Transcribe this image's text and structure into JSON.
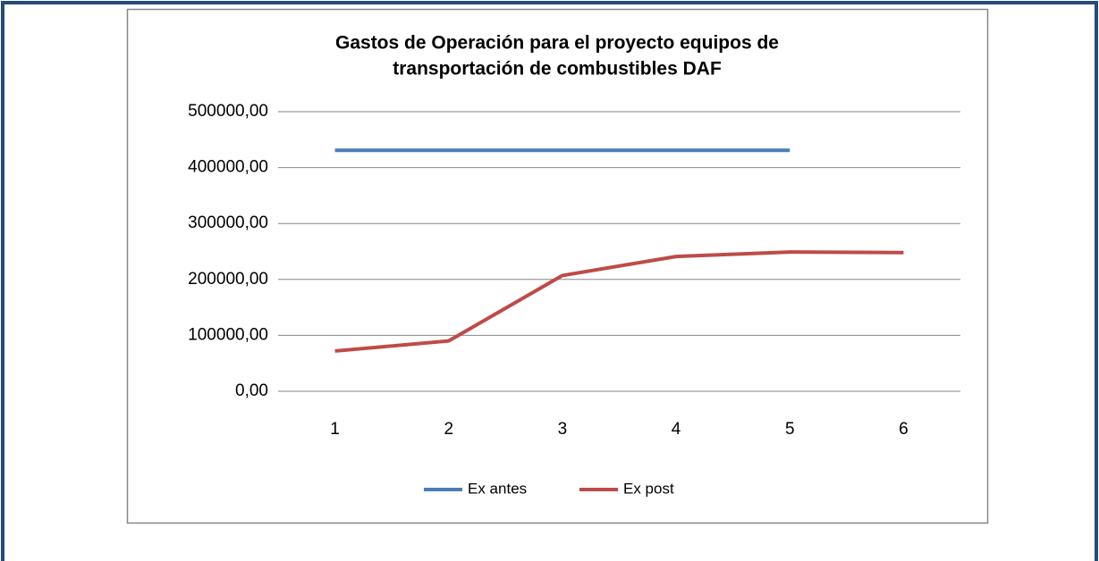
{
  "chart_data": {
    "type": "line",
    "title": [
      "Gastos de Operación para el proyecto equipos de",
      "transportación de combustibles DAF"
    ],
    "categories": [
      "1",
      "2",
      "3",
      "4",
      "5",
      "6"
    ],
    "series": [
      {
        "name": "Ex antes",
        "color": "#4a7ebb",
        "values": [
          431000,
          431000,
          431000,
          431000,
          431000,
          null
        ]
      },
      {
        "name": "Ex post",
        "color": "#be4b48",
        "values": [
          72000,
          90000,
          207000,
          241000,
          249000,
          248000
        ]
      }
    ],
    "ylim": [
      0,
      500000
    ],
    "yticks": [
      {
        "value": 0,
        "label": "0,00"
      },
      {
        "value": 100000,
        "label": "100000,00"
      },
      {
        "value": 200000,
        "label": "200000,00"
      },
      {
        "value": 300000,
        "label": "300000,00"
      },
      {
        "value": 400000,
        "label": "400000,00"
      },
      {
        "value": 500000,
        "label": "500000,00"
      }
    ],
    "grid": true,
    "legend": "bottom"
  }
}
